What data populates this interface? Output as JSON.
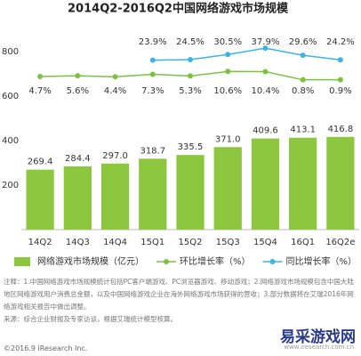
{
  "chart_data": {
    "type": "bar_line",
    "title": "2014Q2-2016Q2中国网络游戏市场规模",
    "categories": [
      "14Q2",
      "14Q3",
      "14Q4",
      "15Q1",
      "15Q2",
      "15Q3",
      "15Q4",
      "16Q1",
      "16Q2e"
    ],
    "ylim": [
      0,
      900
    ],
    "yticks": [
      200,
      400,
      600,
      800
    ],
    "y2lim": [
      -175,
      60
    ],
    "series": [
      {
        "name": "网络游戏市场规模（亿元）",
        "type": "bar",
        "color": "#8dc63f",
        "values": [
          269.4,
          284.4,
          297.0,
          318.7,
          335.5,
          371.0,
          409.6,
          413.1,
          416.8
        ],
        "value_labels": [
          "269.4",
          "284.4",
          "297.0",
          "318.7",
          "335.5",
          "371.0",
          "409.6",
          "413.1",
          "416.8"
        ]
      },
      {
        "name": "环比增长率（%）",
        "type": "line",
        "axis": "y2",
        "color": "#7cc242",
        "values": [
          4.7,
          5.6,
          4.4,
          7.3,
          5.3,
          10.6,
          10.4,
          0.8,
          0.9
        ],
        "value_labels": [
          "4.7%",
          "5.6%",
          "4.4%",
          "7.3%",
          "5.3%",
          "10.6%",
          "10.4%",
          "0.8%",
          "0.9%"
        ]
      },
      {
        "name": "同比增长率（%）",
        "type": "line",
        "axis": "y2",
        "color": "#3ab5e6",
        "values": [
          null,
          null,
          null,
          23.9,
          24.5,
          30.5,
          37.9,
          29.6,
          24.2
        ],
        "value_labels": [
          null,
          null,
          null,
          "23.9%",
          "24.5%",
          "30.5%",
          "37.9%",
          "29.6%",
          "24.2%"
        ]
      }
    ],
    "notes": "注释：1.中国网络游戏市场规模统计包括PC客户端游戏、PC浏览器游戏、移动游戏；2.网络游戏市场规模包含中国大陆地区网络游戏用户消费总金额，以及中国网络游戏企业在海外网络游戏市场获得的营收；3.部分数据将在艾瑞2016年网络游戏相关报告中做出调整。",
    "source": "来源：综合企业财报及专家访谈，根据艾瑞统计模型核算。",
    "footer": "©2016.9 iResearch Inc.",
    "watermark": "易采游戏网",
    "watermark_url": "www.iresearch.com.cn"
  }
}
